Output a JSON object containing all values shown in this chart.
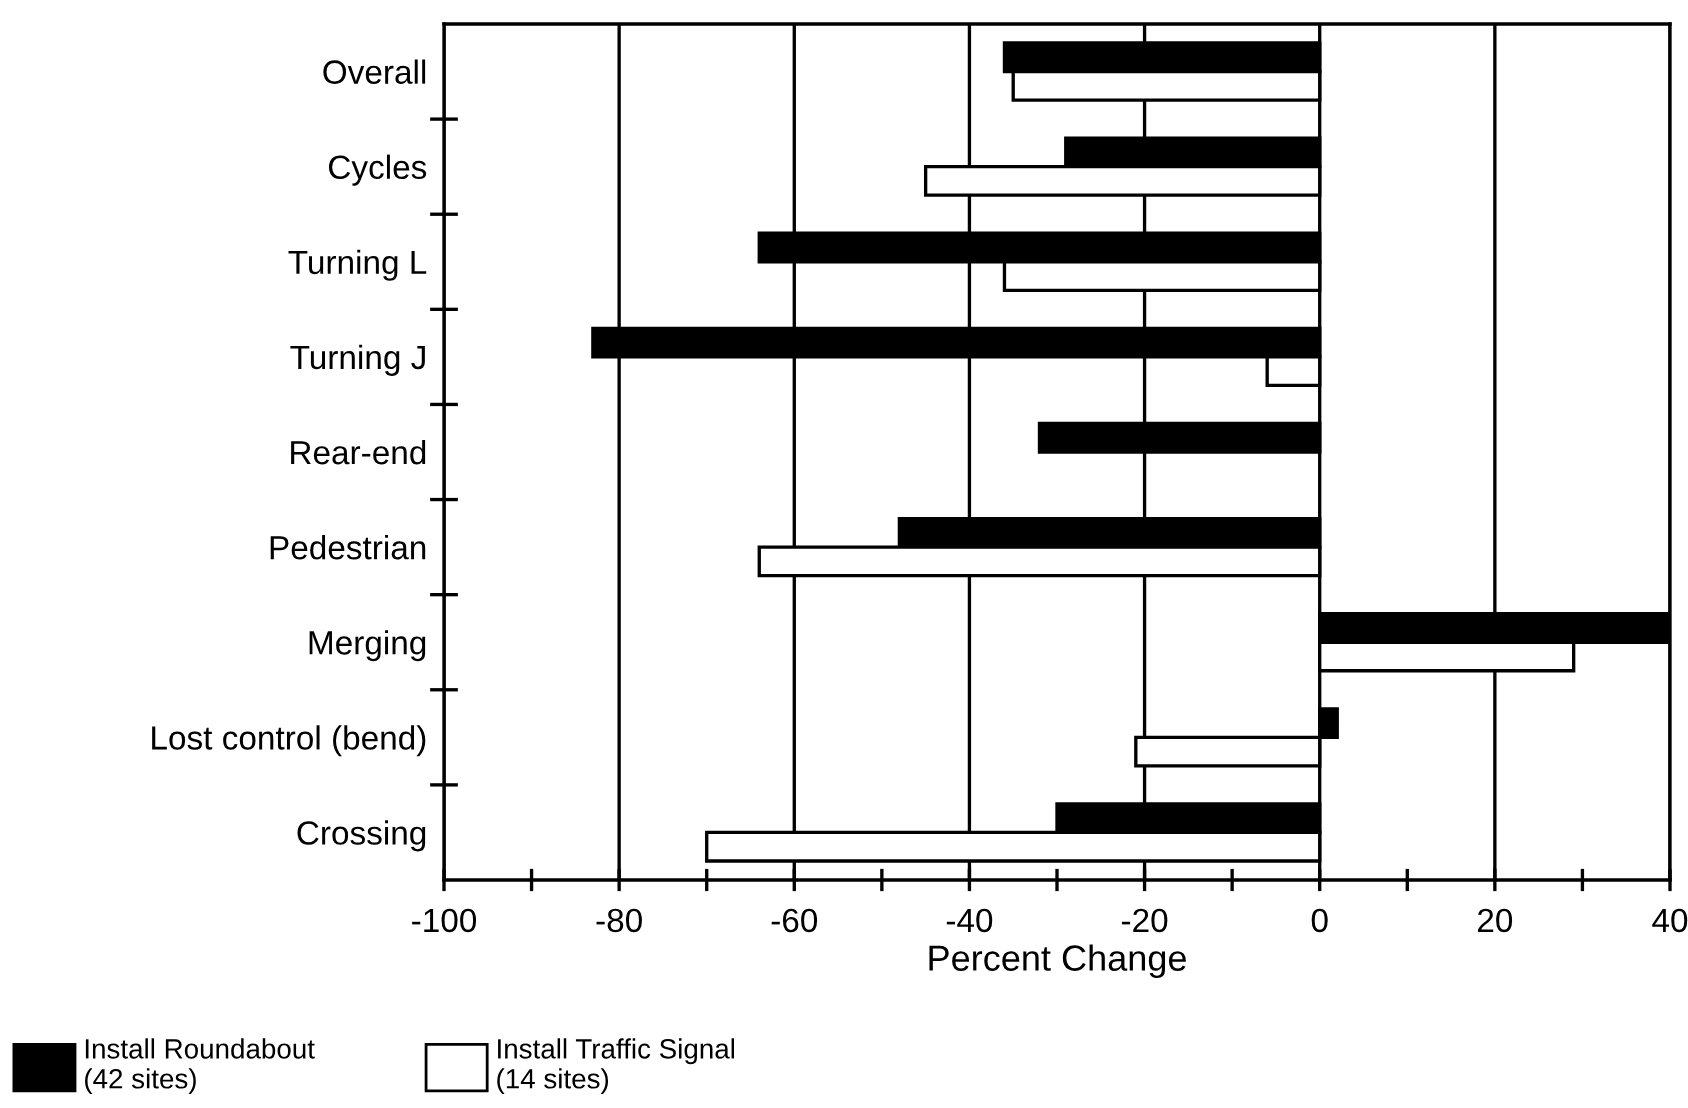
{
  "chart_data": {
    "type": "bar",
    "orientation": "horizontal",
    "xlabel": "Percent Change",
    "categories": [
      "Overall",
      "Cycles",
      "Turning L",
      "Turning J",
      "Rear-end",
      "Pedestrian",
      "Merging",
      "Lost control (bend)",
      "Crossing"
    ],
    "series": [
      {
        "name": "Install Roundabout\n(42 sites)",
        "color": "#000000",
        "values": [
          -36,
          -29,
          -64,
          -83,
          -32,
          -48,
          40,
          2,
          -30
        ]
      },
      {
        "name": "Install Traffic Signal\n(14 sites)",
        "color": "#ffffff",
        "values": [
          -35,
          -45,
          -36,
          -6,
          null,
          -64,
          29,
          -21,
          -70
        ]
      }
    ],
    "xlim": [
      -100,
      40
    ],
    "xticks": [
      -100,
      {
        "value": -90,
        "label": null
      },
      -80,
      {
        "value": -70,
        "label": null
      },
      -60,
      {
        "value": -50,
        "label": null
      },
      -40,
      {
        "value": -30,
        "label": null
      },
      -20,
      {
        "value": -10,
        "label": null
      },
      0,
      {
        "value": 10,
        "label": null
      },
      20,
      {
        "value": 30,
        "label": null
      },
      40
    ],
    "grid": "x",
    "legend": "bottom"
  }
}
